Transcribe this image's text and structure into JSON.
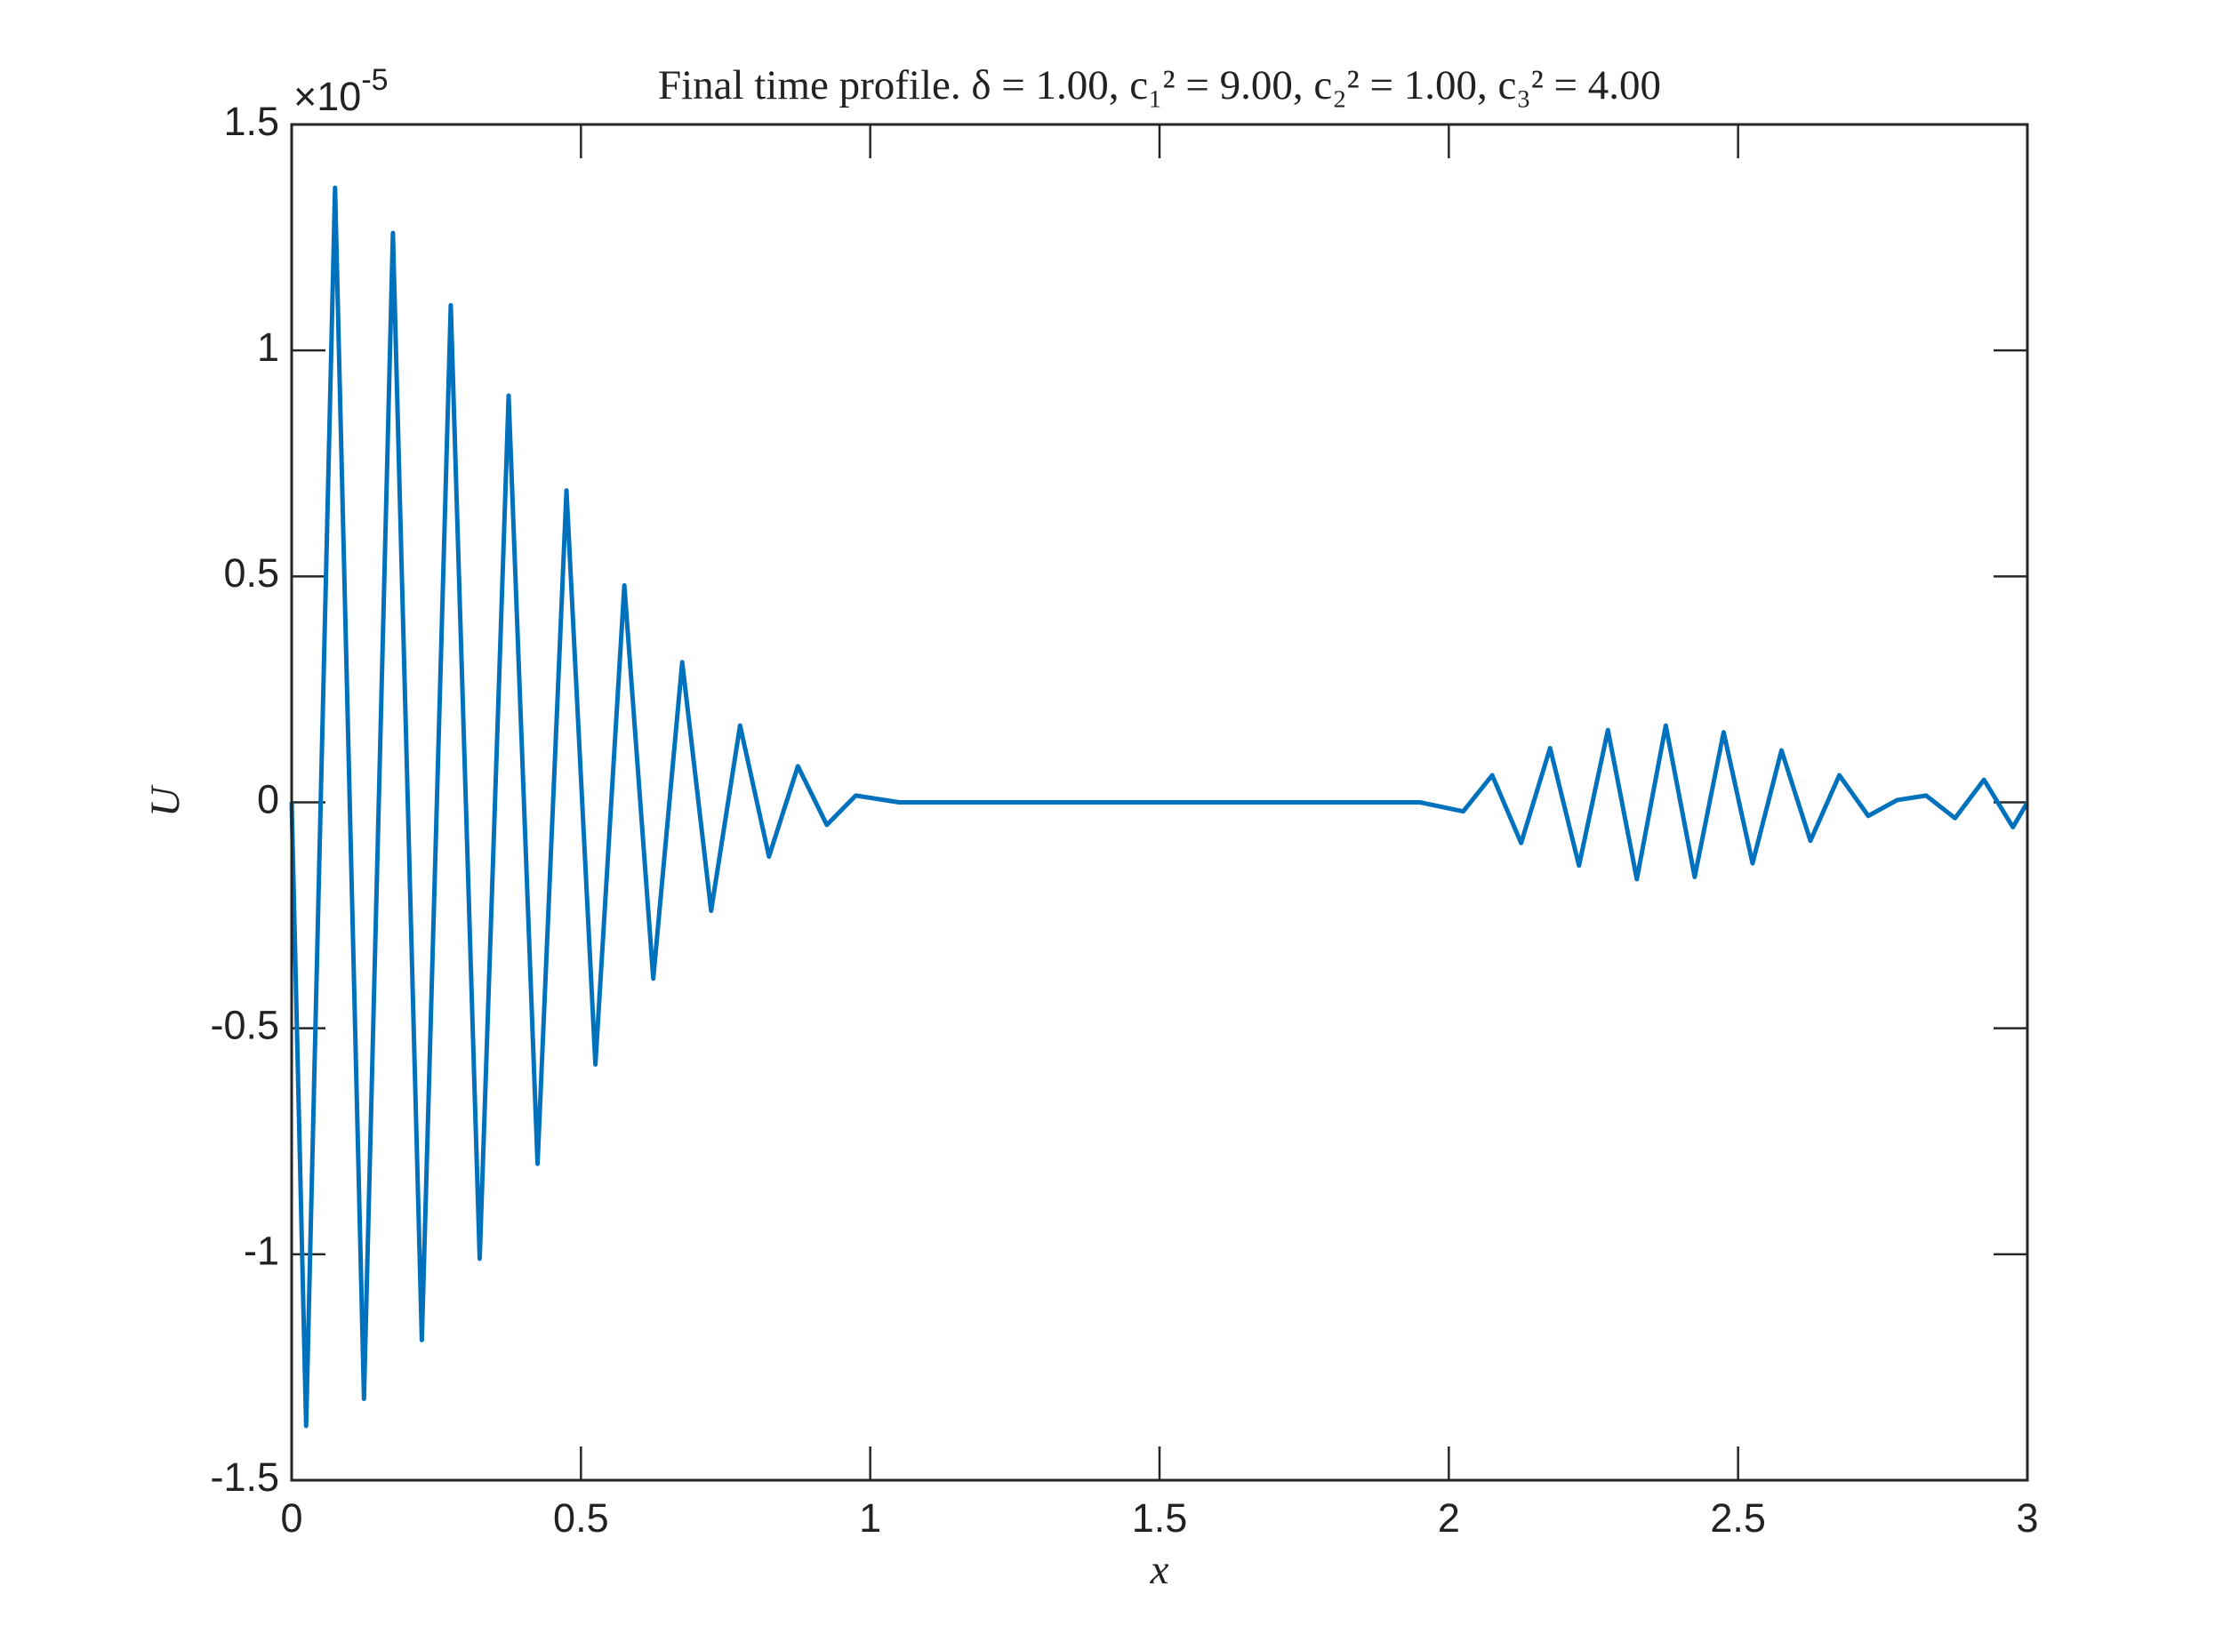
{
  "chart_data": {
    "type": "line",
    "title": "Final time profile. δ = 1.00, c₁² = 9.00, c₂² = 1.00, c₃² = 4.00",
    "x_label": "x",
    "y_label": "U",
    "y_multiplier": "×10",
    "y_multiplier_exponent": "-5",
    "x": [
      0,
      0.025,
      0.075,
      0.125,
      0.175,
      0.225,
      0.275,
      0.325,
      0.375,
      0.425,
      0.475,
      0.525,
      0.575,
      0.625,
      0.675,
      0.725,
      0.775,
      0.825,
      0.875,
      0.925,
      0.975,
      1.05,
      1.95,
      2.025,
      2.075,
      2.125,
      2.175,
      2.225,
      2.275,
      2.325,
      2.375,
      2.425,
      2.475,
      2.525,
      2.575,
      2.625,
      2.675,
      2.725,
      2.775,
      2.825,
      2.875,
      2.925,
      2.975,
      3
    ],
    "series": [
      {
        "name": "U",
        "color": "#0072BD",
        "values": [
          0,
          -1.38,
          1.36,
          -1.32,
          1.26,
          -1.19,
          1.1,
          -1.01,
          0.9,
          -0.8,
          0.69,
          -0.58,
          0.48,
          -0.39,
          0.31,
          -0.24,
          0.17,
          -0.12,
          0.08,
          -0.05,
          0.015,
          0,
          0,
          -0.02,
          0.06,
          -0.09,
          0.12,
          -0.14,
          0.16,
          -0.17,
          0.17,
          -0.165,
          0.155,
          -0.135,
          0.115,
          -0.085,
          0.06,
          -0.03,
          0.005,
          0.015,
          -0.035,
          0.05,
          -0.055,
          0
        ]
      }
    ],
    "xlim": [
      0,
      3
    ],
    "ylim": [
      -1.5,
      1.5
    ],
    "xticks": [
      0,
      0.5,
      1,
      1.5,
      2,
      2.5,
      3
    ],
    "yticks": [
      -1.5,
      -1,
      -0.5,
      0,
      0.5,
      1,
      1.5
    ],
    "grid": false
  }
}
